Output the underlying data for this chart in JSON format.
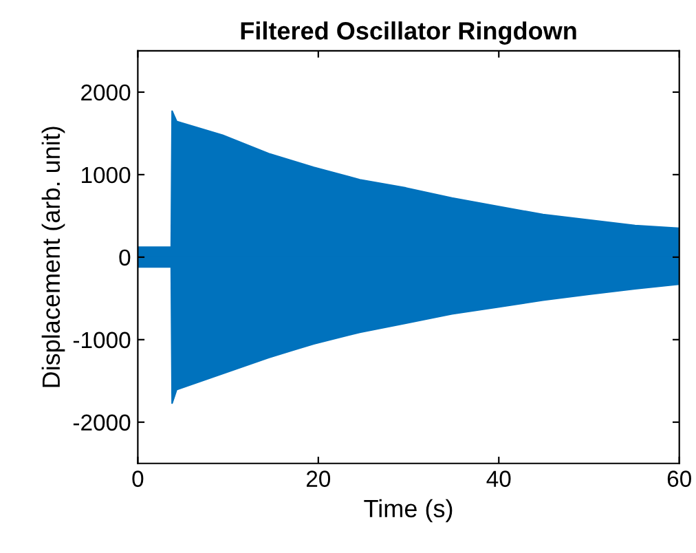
{
  "chart_data": {
    "type": "area",
    "title": "Filtered Oscillator Ringdown",
    "xlabel": "Time (s)",
    "ylabel": "Displacement (arb. unit)",
    "x": [
      0,
      3.5,
      3.7,
      3.8,
      4.3,
      9.4,
      14.5,
      19.5,
      24.6,
      29.7,
      34.8,
      39.8,
      44.9,
      50,
      55.1,
      60
    ],
    "series": [
      {
        "color": "#0072bd",
        "values": [
          120,
          120,
          120,
          1770,
          1645,
          1478,
          1256,
          1089,
          939,
          839,
          717,
          617,
          517,
          450,
          383,
          350
        ]
      },
      {
        "color": "#0072bd",
        "values": [
          -120,
          -120,
          -120,
          -1770,
          -1606,
          -1411,
          -1217,
          -1050,
          -911,
          -800,
          -689,
          -606,
          -522,
          -450,
          -383,
          -328
        ]
      }
    ],
    "xlim": [
      0,
      60
    ],
    "xticks": [
      0,
      20,
      40,
      60
    ],
    "ylim": [
      -2500,
      2500
    ],
    "yticks": [
      -2000,
      -1000,
      0,
      1000,
      2000
    ],
    "grid": false,
    "legend": false
  }
}
